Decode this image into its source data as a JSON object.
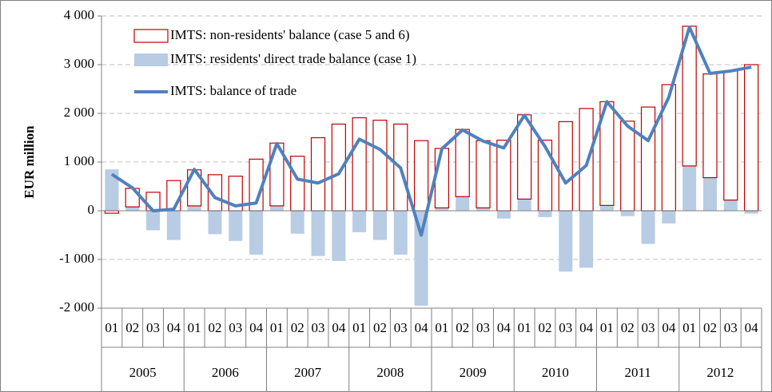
{
  "chart_data": {
    "type": "bar-line",
    "y_label": "EUR million",
    "categories": [
      "01",
      "02",
      "03",
      "04",
      "01",
      "02",
      "03",
      "04",
      "01",
      "02",
      "03",
      "04",
      "01",
      "02",
      "03",
      "04",
      "01",
      "02",
      "03",
      "04",
      "01",
      "02",
      "03",
      "04",
      "01",
      "02",
      "03",
      "04",
      "01",
      "02",
      "03",
      "04"
    ],
    "groups": [
      "2005",
      "2006",
      "2007",
      "2008",
      "2009",
      "2010",
      "2011",
      "2012"
    ],
    "series": [
      {
        "name": "IMTS: non-residents' balance (case 5 and 6)",
        "kind": "bar",
        "color": "#c00000",
        "fill": "#ffffff",
        "values": [
          -50,
          380,
          380,
          620,
          740,
          740,
          710,
          1060,
          1290,
          1120,
          1500,
          1780,
          1910,
          1860,
          1780,
          1440,
          1220,
          1380,
          1380,
          1450,
          1730,
          1450,
          1830,
          2100,
          2130,
          1840,
          2130,
          2590,
          2870,
          2130,
          2650,
          3000
        ]
      },
      {
        "name": "IMTS: residents' direct trade balance (case 1)",
        "kind": "bar",
        "color": "#b8cce4",
        "values": [
          850,
          80,
          -400,
          -600,
          100,
          -480,
          -620,
          -900,
          100,
          -470,
          -930,
          -1030,
          -440,
          -600,
          -900,
          -1950,
          60,
          290,
          60,
          -160,
          240,
          -130,
          -1250,
          -1170,
          110,
          -110,
          -680,
          -260,
          920,
          680,
          220,
          -60
        ]
      },
      {
        "name": "IMTS: balance of trade",
        "kind": "line",
        "color": "#4f81bd",
        "values": [
          750,
          470,
          0,
          30,
          850,
          270,
          100,
          160,
          1380,
          650,
          570,
          760,
          1470,
          1260,
          880,
          -500,
          1270,
          1660,
          1430,
          1290,
          1960,
          1320,
          570,
          930,
          2240,
          1740,
          1440,
          2330,
          3770,
          2820,
          2870,
          2950
        ]
      }
    ],
    "ylim": [
      -2000,
      4000
    ],
    "yticks": [
      {
        "value": -2000,
        "label": "-2 000"
      },
      {
        "value": -1000,
        "label": "-1 000"
      },
      0,
      {
        "value": 1000,
        "label": "1 000"
      },
      {
        "value": 2000,
        "label": "2 000"
      },
      {
        "value": 3000,
        "label": "3 000"
      },
      {
        "value": 4000,
        "label": "4 000"
      }
    ],
    "grid": true,
    "legend": "top-left"
  }
}
